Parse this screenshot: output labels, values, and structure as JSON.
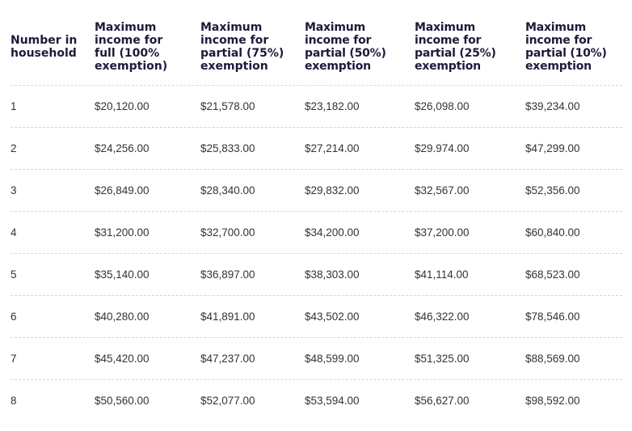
{
  "table": {
    "header": [
      "Number in household",
      "Maximum income for full (100% exemption)",
      "Maximum income for partial (75%) exemption",
      "Maximum income for partial (50%) exemption",
      "Maximum income for partial (25%) exemption",
      "Maximum income for partial (10%) exemption"
    ],
    "rows": [
      [
        "1",
        "$20,120.00",
        "$21,578.00",
        "$23,182.00",
        "$26,098.00",
        "$39,234.00"
      ],
      [
        "2",
        "$24,256.00",
        "$25,833.00",
        "$27,214.00",
        "$29.974.00",
        "$47,299.00"
      ],
      [
        "3",
        "$26,849.00",
        "$28,340.00",
        "$29,832.00",
        "$32,567.00",
        "$52,356.00"
      ],
      [
        "4",
        "$31,200.00",
        "$32,700.00",
        "$34,200.00",
        "$37,200.00",
        "$60,840.00"
      ],
      [
        "5",
        "$35,140.00",
        "$36,897.00",
        "$38,303.00",
        "$41,114.00",
        "$68,523.00"
      ],
      [
        "6",
        "$40,280.00",
        "$41,891.00",
        "$43,502.00",
        "$46,322.00",
        "$78,546.00"
      ],
      [
        "7",
        "$45,420.00",
        "$47,237.00",
        "$48,599.00",
        "$51,325.00",
        "$88,569.00"
      ],
      [
        "8",
        "$50,560.00",
        "$52,077.00",
        "$53,594.00",
        "$56,627.00",
        "$98,592.00"
      ]
    ]
  }
}
